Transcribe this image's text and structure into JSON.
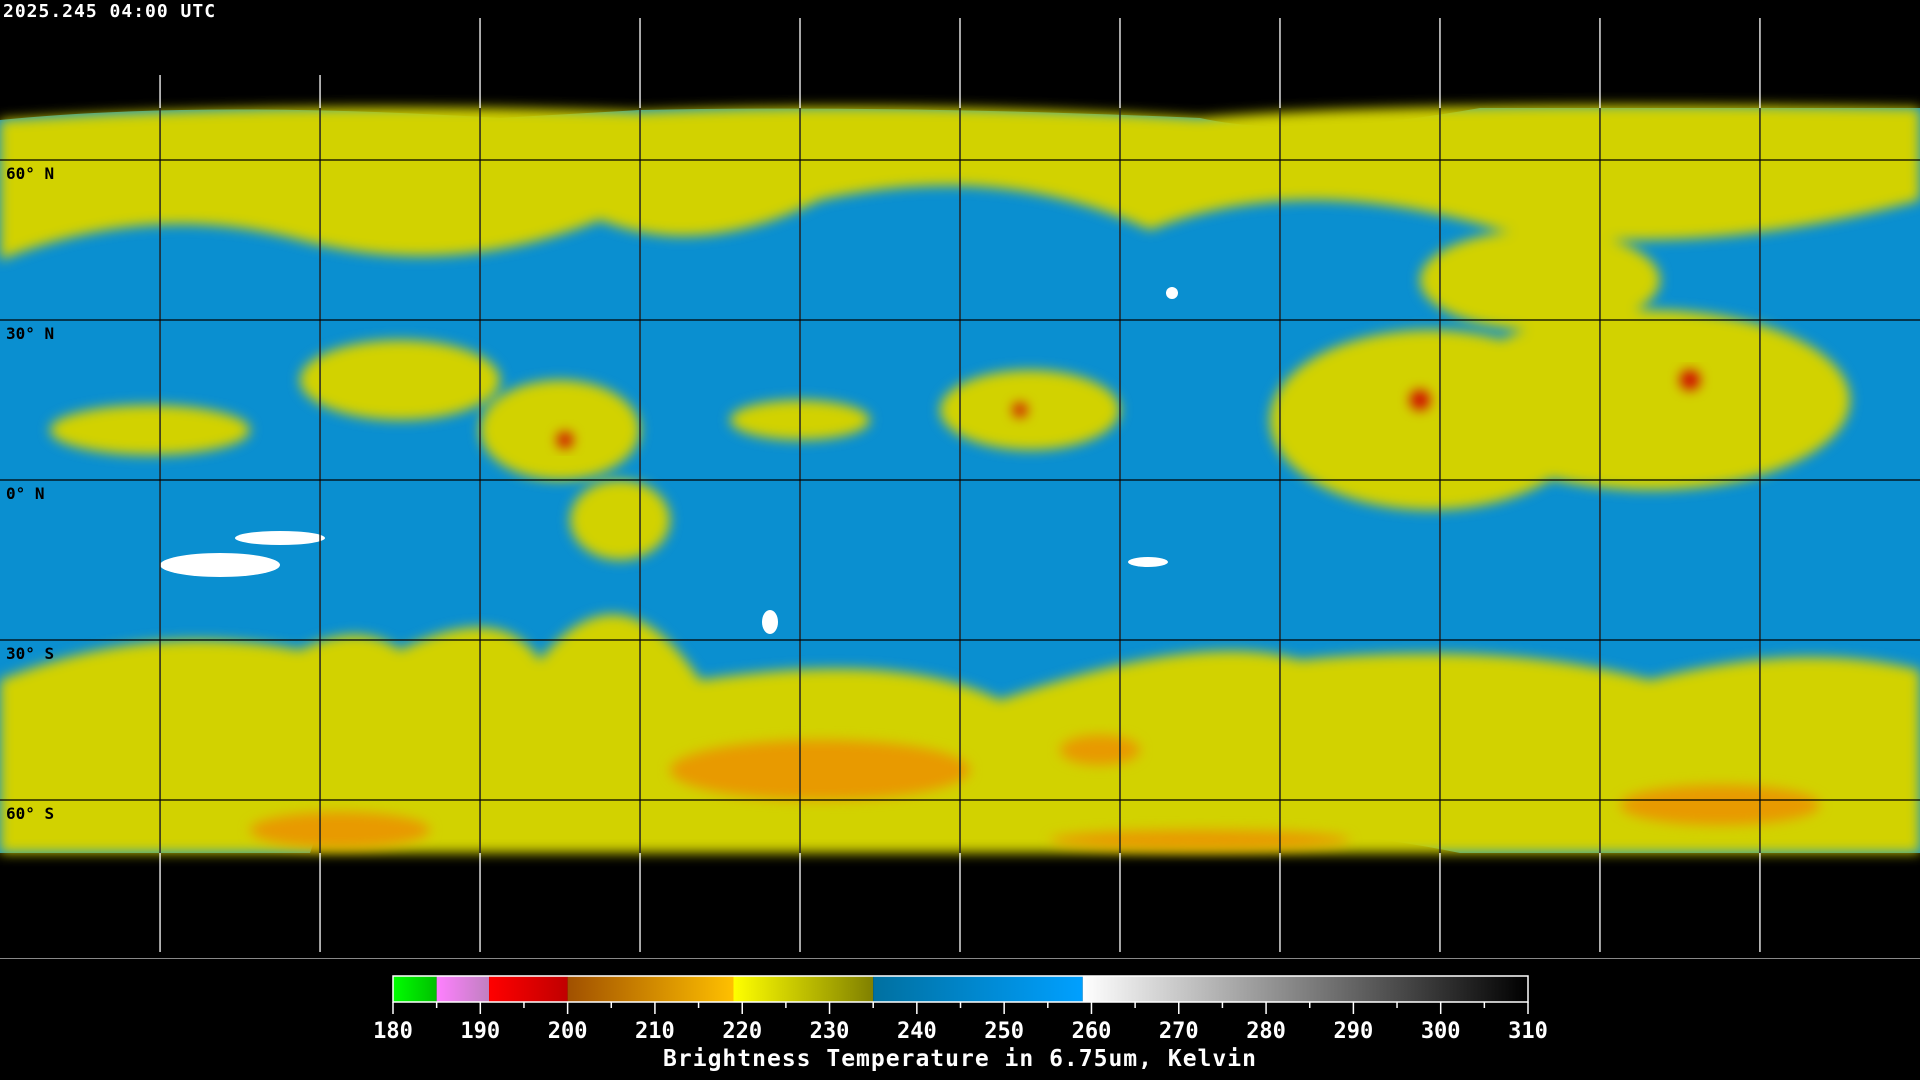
{
  "timestamp": "2025.245 04:00 UTC",
  "lat_labels": [
    {
      "label": "60° N",
      "lat": 60
    },
    {
      "label": "30° N",
      "lat": 30
    },
    {
      "label": "0° N",
      "lat": 0
    },
    {
      "label": "30° S",
      "lat": -30
    },
    {
      "label": "60° S",
      "lat": -60
    }
  ],
  "grid": {
    "lon_step_deg": 30,
    "lat_step_deg": 30,
    "projection": "equirectangular"
  },
  "colorbar": {
    "title": "Brightness Temperature in 6.75um, Kelvin",
    "min": 180,
    "max": 310,
    "ticks": [
      "180",
      "190",
      "200",
      "210",
      "220",
      "230",
      "240",
      "250",
      "260",
      "270",
      "280",
      "290",
      "300",
      "310"
    ],
    "segments": [
      {
        "from": 180,
        "to": 185,
        "c1": "#00ff00",
        "c2": "#00c000"
      },
      {
        "from": 185,
        "to": 191,
        "c1": "#ff80ff",
        "c2": "#c080c0"
      },
      {
        "from": 191,
        "to": 200,
        "c1": "#ff0000",
        "c2": "#c00000"
      },
      {
        "from": 200,
        "to": 219,
        "c1": "#a05000",
        "c2": "#ffc000"
      },
      {
        "from": 219,
        "to": 235,
        "c1": "#ffff00",
        "c2": "#808000"
      },
      {
        "from": 235,
        "to": 259,
        "c1": "#0070a0",
        "c2": "#00a0ff"
      },
      {
        "from": 259,
        "to": 310,
        "c1": "#ffffff",
        "c2": "#000000"
      }
    ]
  },
  "colors": {
    "yellow": "#d8d800",
    "blue": "#0a8fd0",
    "orange": "#e8a000",
    "red": "#d00000",
    "background": "#000000"
  }
}
